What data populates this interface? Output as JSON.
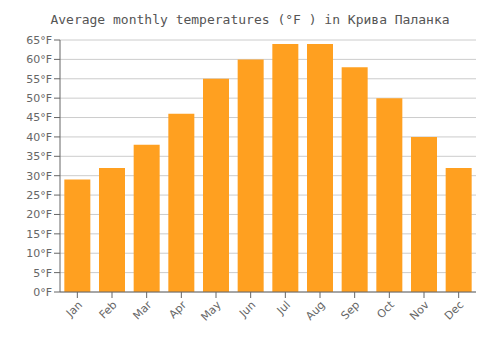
{
  "chart_data": {
    "type": "bar",
    "title": "Average monthly temperatures (°F ) in Крива Паланка",
    "categories": [
      "Jan",
      "Feb",
      "Mar",
      "Apr",
      "May",
      "Jun",
      "Jul",
      "Aug",
      "Sep",
      "Oct",
      "Nov",
      "Dec"
    ],
    "values": [
      29,
      32,
      38,
      46,
      55,
      60,
      64,
      64,
      58,
      50,
      40,
      32
    ],
    "color": "#FFA020",
    "ylim": [
      0,
      65
    ],
    "yticks": [
      {
        "value": 0,
        "label": "0°F"
      },
      {
        "value": 5,
        "label": "5°F"
      },
      {
        "value": 10,
        "label": "10°F"
      },
      {
        "value": 15,
        "label": "15°F"
      },
      {
        "value": 20,
        "label": "20°F"
      },
      {
        "value": 25,
        "label": "25°F"
      },
      {
        "value": 30,
        "label": "30°F"
      },
      {
        "value": 35,
        "label": "35°F"
      },
      {
        "value": 40,
        "label": "40°F"
      },
      {
        "value": 45,
        "label": "45°F"
      },
      {
        "value": 50,
        "label": "50°F"
      },
      {
        "value": 55,
        "label": "55°F"
      },
      {
        "value": 60,
        "label": "60°F"
      },
      {
        "value": 65,
        "label": "65°F"
      }
    ],
    "grid": true
  }
}
